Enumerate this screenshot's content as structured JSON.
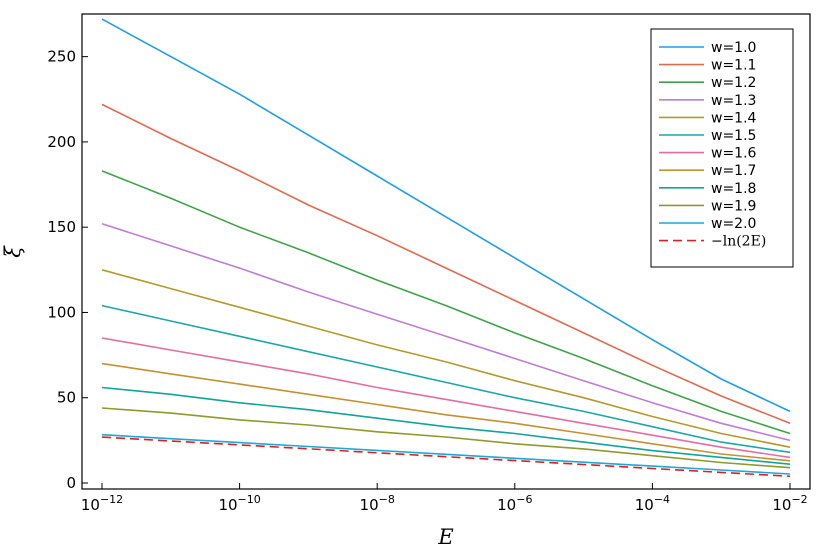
{
  "chart_data": {
    "type": "line",
    "xlabel": "E",
    "ylabel": "ξ",
    "xscale": "log10",
    "xlim": [
      1e-12,
      0.01
    ],
    "ylim": [
      0,
      275
    ],
    "xticks": [
      {
        "value": 1e-12,
        "base": "10",
        "exp": "−12"
      },
      {
        "value": 1e-10,
        "base": "10",
        "exp": "−10"
      },
      {
        "value": 1e-08,
        "base": "10",
        "exp": "−8"
      },
      {
        "value": 1e-06,
        "base": "10",
        "exp": "−6"
      },
      {
        "value": 0.0001,
        "base": "10",
        "exp": "−4"
      },
      {
        "value": 0.01,
        "base": "10",
        "exp": "−2"
      }
    ],
    "yticks": [
      0,
      50,
      100,
      150,
      200,
      250
    ],
    "grid": false,
    "legend_position": "top-right",
    "x": [
      1e-12,
      1e-11,
      1e-10,
      1e-09,
      1e-08,
      1e-07,
      1e-06,
      1e-05,
      0.0001,
      0.001,
      0.01
    ],
    "series": [
      {
        "name": "w=1.0",
        "color": "#1f9ee8",
        "dash": false,
        "values": [
          272,
          250,
          228,
          204,
          180,
          156,
          132,
          108,
          84,
          61,
          42
        ]
      },
      {
        "name": "w=1.1",
        "color": "#e26a4f",
        "dash": false,
        "values": [
          222,
          202,
          183,
          163,
          145,
          126,
          107,
          88,
          69,
          51,
          35
        ]
      },
      {
        "name": "w=1.2",
        "color": "#3ea448",
        "dash": false,
        "values": [
          183,
          167,
          150,
          135,
          119,
          104,
          88,
          73,
          57,
          42,
          29
        ]
      },
      {
        "name": "w=1.3",
        "color": "#c07cd6",
        "dash": false,
        "values": [
          152,
          139,
          126,
          112,
          99,
          86,
          73,
          60,
          47,
          35,
          25
        ]
      },
      {
        "name": "w=1.4",
        "color": "#b59a2b",
        "dash": false,
        "values": [
          125,
          114,
          103,
          92,
          81,
          71,
          60,
          50,
          39,
          29,
          21
        ]
      },
      {
        "name": "w=1.5",
        "color": "#1ba8a8",
        "dash": false,
        "values": [
          104,
          95,
          86,
          77,
          68,
          59,
          50,
          42,
          33,
          24,
          18
        ]
      },
      {
        "name": "w=1.6",
        "color": "#e46e9f",
        "dash": false,
        "values": [
          85,
          78,
          71,
          64,
          56,
          49,
          42,
          35,
          28,
          21,
          15
        ]
      },
      {
        "name": "w=1.7",
        "color": "#c7902f",
        "dash": false,
        "values": [
          70,
          64,
          58,
          52,
          46,
          40,
          35,
          29,
          23,
          17,
          13
        ]
      },
      {
        "name": "w=1.8",
        "color": "#11a598",
        "dash": false,
        "values": [
          56,
          52,
          47,
          43,
          38,
          33,
          29,
          24,
          19,
          15,
          11
        ]
      },
      {
        "name": "w=1.9",
        "color": "#8e9a2a",
        "dash": false,
        "values": [
          44,
          41,
          37,
          34,
          30,
          27,
          23,
          20,
          16,
          12,
          9
        ]
      },
      {
        "name": "w=2.0",
        "color": "#1aa9d9",
        "dash": false,
        "values": [
          28.3,
          26.0,
          23.7,
          21.4,
          19.1,
          16.8,
          14.5,
          12.2,
          9.9,
          7.6,
          5.3
        ]
      },
      {
        "name": "−ln(2E)",
        "color": "#e02020",
        "dash": true,
        "values": [
          26.94,
          24.64,
          22.33,
          20.03,
          17.73,
          15.43,
          13.12,
          10.82,
          8.52,
          6.21,
          3.91
        ]
      }
    ]
  }
}
